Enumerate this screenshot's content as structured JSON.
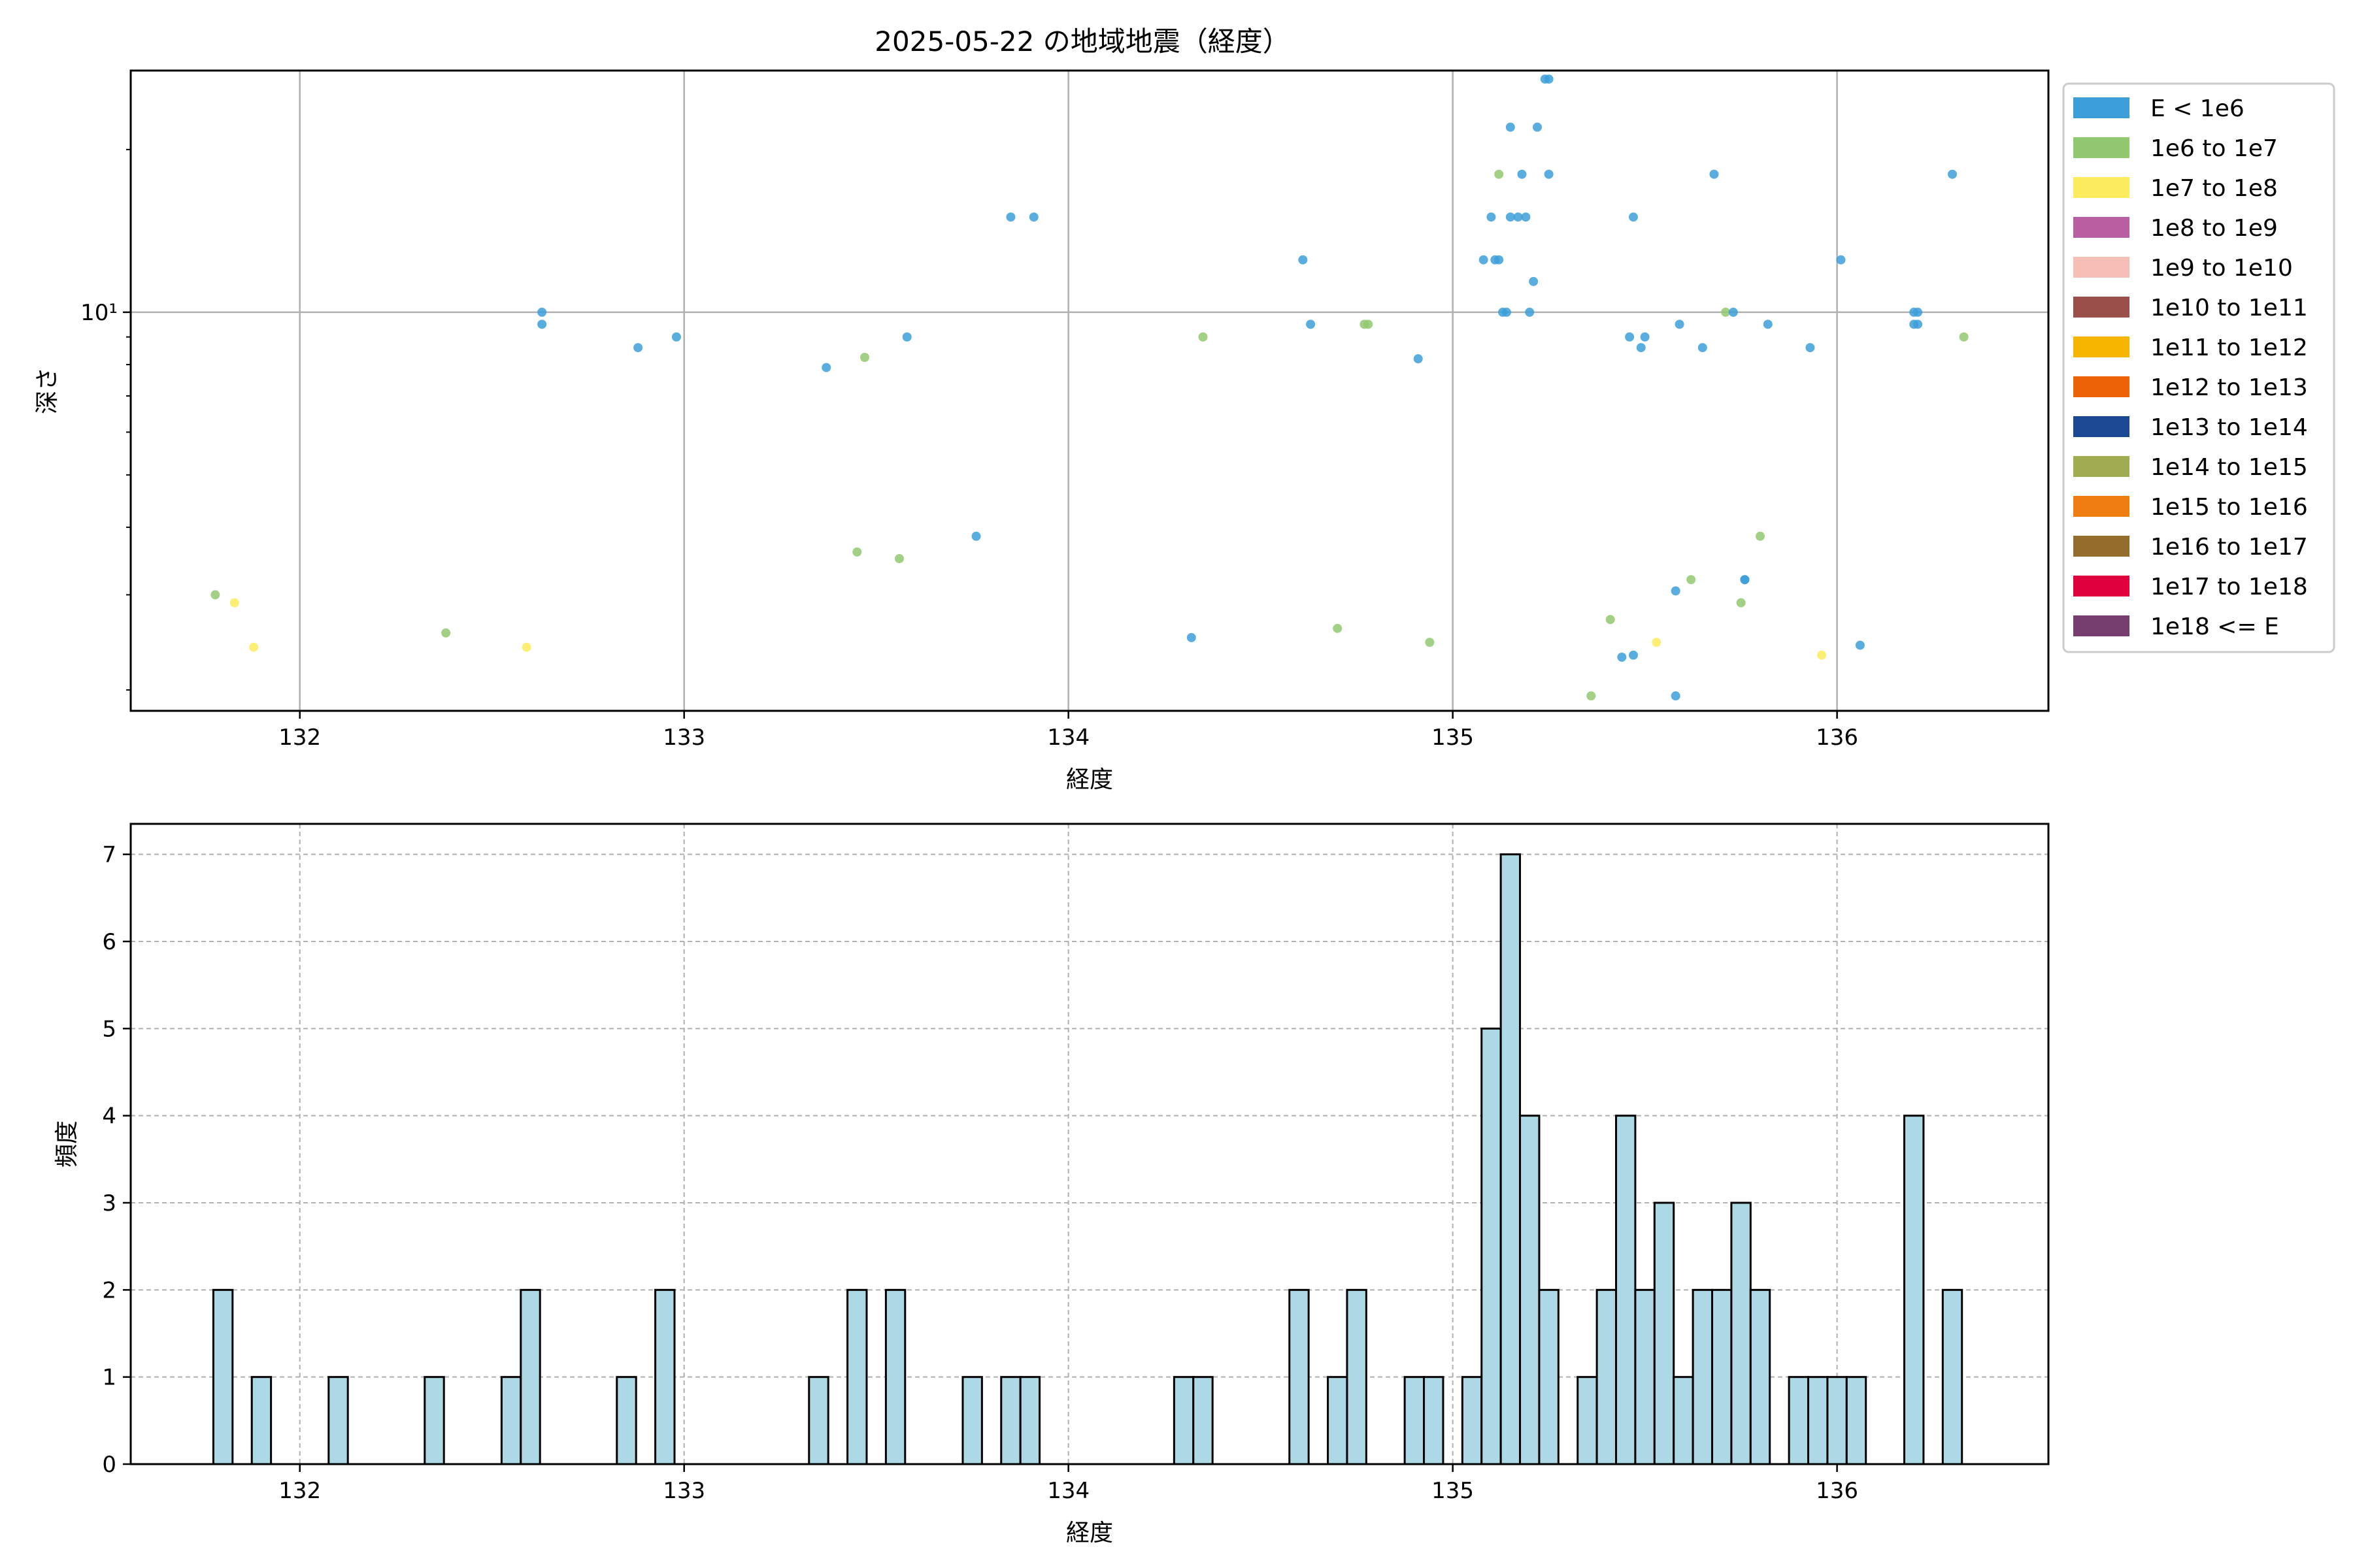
{
  "figure": {
    "title": "2025-05-22 の地域地震（経度）"
  },
  "chart_data": [
    {
      "type": "scatter",
      "title": "2025-05-22 の地域地震（経度）",
      "xlabel": "経度",
      "ylabel": "深さ",
      "xlim": [
        131.56,
        136.55
      ],
      "ylim": [
        1.83,
        28
      ],
      "yscale": "log",
      "grid": true,
      "x_ticks": [
        132,
        133,
        134,
        135,
        136
      ],
      "y_tick_label": "10¹",
      "y_tick_value": 10,
      "legend_position": "outside-right",
      "legend": [
        {
          "label": "E < 1e6",
          "color": "#3c9fd9"
        },
        {
          "label": "1e6 to 1e7",
          "color": "#92c970"
        },
        {
          "label": "1e7 to 1e8",
          "color": "#fdec5e"
        },
        {
          "label": "1e8 to 1e9",
          "color": "#b85ea1"
        },
        {
          "label": "1e9 to 1e10",
          "color": "#f5bfb8"
        },
        {
          "label": "1e10 to 1e11",
          "color": "#9a4f4a"
        },
        {
          "label": "1e11 to 1e12",
          "color": "#f8b500"
        },
        {
          "label": "1e12 to 1e13",
          "color": "#ec6407"
        },
        {
          "label": "1e13 to 1e14",
          "color": "#1b4892"
        },
        {
          "label": "1e14 to 1e15",
          "color": "#a0ac50"
        },
        {
          "label": "1e15 to 1e16",
          "color": "#ef7d11"
        },
        {
          "label": "1e16 to 1e17",
          "color": "#946c2b"
        },
        {
          "label": "1e17 to 1e18",
          "color": "#e0003d"
        },
        {
          "label": "1e18 <= E",
          "color": "#763e6e"
        }
      ],
      "points": [
        {
          "x": 131.78,
          "y": 3.0,
          "c": 1
        },
        {
          "x": 131.83,
          "y": 2.9,
          "c": 2
        },
        {
          "x": 131.88,
          "y": 2.4,
          "c": 2
        },
        {
          "x": 132.38,
          "y": 2.55,
          "c": 1
        },
        {
          "x": 132.59,
          "y": 2.4,
          "c": 2
        },
        {
          "x": 132.63,
          "y": 10.0,
          "c": 0
        },
        {
          "x": 132.63,
          "y": 9.5,
          "c": 0
        },
        {
          "x": 132.88,
          "y": 8.6,
          "c": 0
        },
        {
          "x": 132.98,
          "y": 9.0,
          "c": 0
        },
        {
          "x": 133.37,
          "y": 7.9,
          "c": 0
        },
        {
          "x": 133.45,
          "y": 3.6,
          "c": 1
        },
        {
          "x": 133.47,
          "y": 8.25,
          "c": 1
        },
        {
          "x": 133.56,
          "y": 3.5,
          "c": 1
        },
        {
          "x": 133.58,
          "y": 9.0,
          "c": 0
        },
        {
          "x": 133.76,
          "y": 3.85,
          "c": 0
        },
        {
          "x": 133.85,
          "y": 15.0,
          "c": 0
        },
        {
          "x": 133.91,
          "y": 15.0,
          "c": 0
        },
        {
          "x": 134.32,
          "y": 2.5,
          "c": 0
        },
        {
          "x": 134.35,
          "y": 9.0,
          "c": 1
        },
        {
          "x": 134.61,
          "y": 12.5,
          "c": 0
        },
        {
          "x": 134.63,
          "y": 9.5,
          "c": 0
        },
        {
          "x": 134.7,
          "y": 2.6,
          "c": 1
        },
        {
          "x": 134.77,
          "y": 9.5,
          "c": 1
        },
        {
          "x": 134.78,
          "y": 9.5,
          "c": 1
        },
        {
          "x": 134.91,
          "y": 8.2,
          "c": 0
        },
        {
          "x": 134.94,
          "y": 2.45,
          "c": 1
        },
        {
          "x": 135.08,
          "y": 12.5,
          "c": 0
        },
        {
          "x": 135.1,
          "y": 15.0,
          "c": 0
        },
        {
          "x": 135.11,
          "y": 12.5,
          "c": 0
        },
        {
          "x": 135.12,
          "y": 12.5,
          "c": 0
        },
        {
          "x": 135.12,
          "y": 18.0,
          "c": 1
        },
        {
          "x": 135.13,
          "y": 10.0,
          "c": 0
        },
        {
          "x": 135.14,
          "y": 10.0,
          "c": 0
        },
        {
          "x": 135.15,
          "y": 22.0,
          "c": 0
        },
        {
          "x": 135.15,
          "y": 15.0,
          "c": 0
        },
        {
          "x": 135.17,
          "y": 15.0,
          "c": 0
        },
        {
          "x": 135.18,
          "y": 18.0,
          "c": 0
        },
        {
          "x": 135.19,
          "y": 15.0,
          "c": 0
        },
        {
          "x": 135.2,
          "y": 10.0,
          "c": 0
        },
        {
          "x": 135.21,
          "y": 11.4,
          "c": 0
        },
        {
          "x": 135.22,
          "y": 22.0,
          "c": 0
        },
        {
          "x": 135.24,
          "y": 27.0,
          "c": 0
        },
        {
          "x": 135.25,
          "y": 27.0,
          "c": 0
        },
        {
          "x": 135.25,
          "y": 18.0,
          "c": 0
        },
        {
          "x": 135.36,
          "y": 1.95,
          "c": 1
        },
        {
          "x": 135.41,
          "y": 2.7,
          "c": 1
        },
        {
          "x": 135.44,
          "y": 2.3,
          "c": 0
        },
        {
          "x": 135.46,
          "y": 9.0,
          "c": 0
        },
        {
          "x": 135.47,
          "y": 15.0,
          "c": 0
        },
        {
          "x": 135.47,
          "y": 2.32,
          "c": 0
        },
        {
          "x": 135.49,
          "y": 8.6,
          "c": 0
        },
        {
          "x": 135.5,
          "y": 9.0,
          "c": 0
        },
        {
          "x": 135.53,
          "y": 2.45,
          "c": 2
        },
        {
          "x": 135.58,
          "y": 3.05,
          "c": 0
        },
        {
          "x": 135.58,
          "y": 1.95,
          "c": 0
        },
        {
          "x": 135.59,
          "y": 9.5,
          "c": 0
        },
        {
          "x": 135.62,
          "y": 3.2,
          "c": 1
        },
        {
          "x": 135.65,
          "y": 8.6,
          "c": 0
        },
        {
          "x": 135.68,
          "y": 18.0,
          "c": 0
        },
        {
          "x": 135.71,
          "y": 10.0,
          "c": 1
        },
        {
          "x": 135.73,
          "y": 10.0,
          "c": 0
        },
        {
          "x": 135.75,
          "y": 2.9,
          "c": 1
        },
        {
          "x": 135.76,
          "y": 3.2,
          "c": 0
        },
        {
          "x": 135.76,
          "y": 3.2,
          "c": 0
        },
        {
          "x": 135.8,
          "y": 3.85,
          "c": 1
        },
        {
          "x": 135.82,
          "y": 9.5,
          "c": 0
        },
        {
          "x": 135.93,
          "y": 8.6,
          "c": 0
        },
        {
          "x": 135.96,
          "y": 2.32,
          "c": 2
        },
        {
          "x": 136.01,
          "y": 12.5,
          "c": 0
        },
        {
          "x": 136.06,
          "y": 2.42,
          "c": 0
        },
        {
          "x": 136.2,
          "y": 10.0,
          "c": 0
        },
        {
          "x": 136.21,
          "y": 10.0,
          "c": 0
        },
        {
          "x": 136.2,
          "y": 9.5,
          "c": 0
        },
        {
          "x": 136.21,
          "y": 9.5,
          "c": 0
        },
        {
          "x": 136.3,
          "y": 18.0,
          "c": 0
        },
        {
          "x": 136.33,
          "y": 9.0,
          "c": 1
        }
      ]
    },
    {
      "type": "bar",
      "title": "",
      "xlabel": "経度",
      "ylabel": "頻度",
      "xlim": [
        131.56,
        136.55
      ],
      "ylim": [
        0,
        7.35
      ],
      "x_ticks": [
        132,
        133,
        134,
        135,
        136
      ],
      "y_ticks": [
        0,
        1,
        2,
        3,
        4,
        5,
        6,
        7
      ],
      "grid": true,
      "bar_color": "#add8e6",
      "edge_color": "#000000",
      "bin_width": 0.05,
      "bins": [
        {
          "x": 131.8,
          "count": 2
        },
        {
          "x": 131.9,
          "count": 1
        },
        {
          "x": 132.1,
          "count": 1
        },
        {
          "x": 132.35,
          "count": 1
        },
        {
          "x": 132.55,
          "count": 1
        },
        {
          "x": 132.6,
          "count": 2
        },
        {
          "x": 132.85,
          "count": 1
        },
        {
          "x": 132.95,
          "count": 2
        },
        {
          "x": 133.35,
          "count": 1
        },
        {
          "x": 133.45,
          "count": 2
        },
        {
          "x": 133.55,
          "count": 2
        },
        {
          "x": 133.75,
          "count": 1
        },
        {
          "x": 133.85,
          "count": 1
        },
        {
          "x": 133.9,
          "count": 1
        },
        {
          "x": 134.3,
          "count": 1
        },
        {
          "x": 134.35,
          "count": 1
        },
        {
          "x": 134.6,
          "count": 2
        },
        {
          "x": 134.7,
          "count": 1
        },
        {
          "x": 134.75,
          "count": 2
        },
        {
          "x": 134.9,
          "count": 1
        },
        {
          "x": 134.95,
          "count": 1
        },
        {
          "x": 135.05,
          "count": 1
        },
        {
          "x": 135.1,
          "count": 5
        },
        {
          "x": 135.15,
          "count": 7
        },
        {
          "x": 135.2,
          "count": 4
        },
        {
          "x": 135.25,
          "count": 2
        },
        {
          "x": 135.35,
          "count": 1
        },
        {
          "x": 135.4,
          "count": 2
        },
        {
          "x": 135.45,
          "count": 4
        },
        {
          "x": 135.5,
          "count": 2
        },
        {
          "x": 135.55,
          "count": 3
        },
        {
          "x": 135.6,
          "count": 1
        },
        {
          "x": 135.65,
          "count": 2
        },
        {
          "x": 135.7,
          "count": 2
        },
        {
          "x": 135.75,
          "count": 3
        },
        {
          "x": 135.8,
          "count": 2
        },
        {
          "x": 135.9,
          "count": 1
        },
        {
          "x": 135.95,
          "count": 1
        },
        {
          "x": 136.0,
          "count": 1
        },
        {
          "x": 136.05,
          "count": 1
        },
        {
          "x": 136.2,
          "count": 4
        },
        {
          "x": 136.3,
          "count": 2
        }
      ]
    }
  ]
}
